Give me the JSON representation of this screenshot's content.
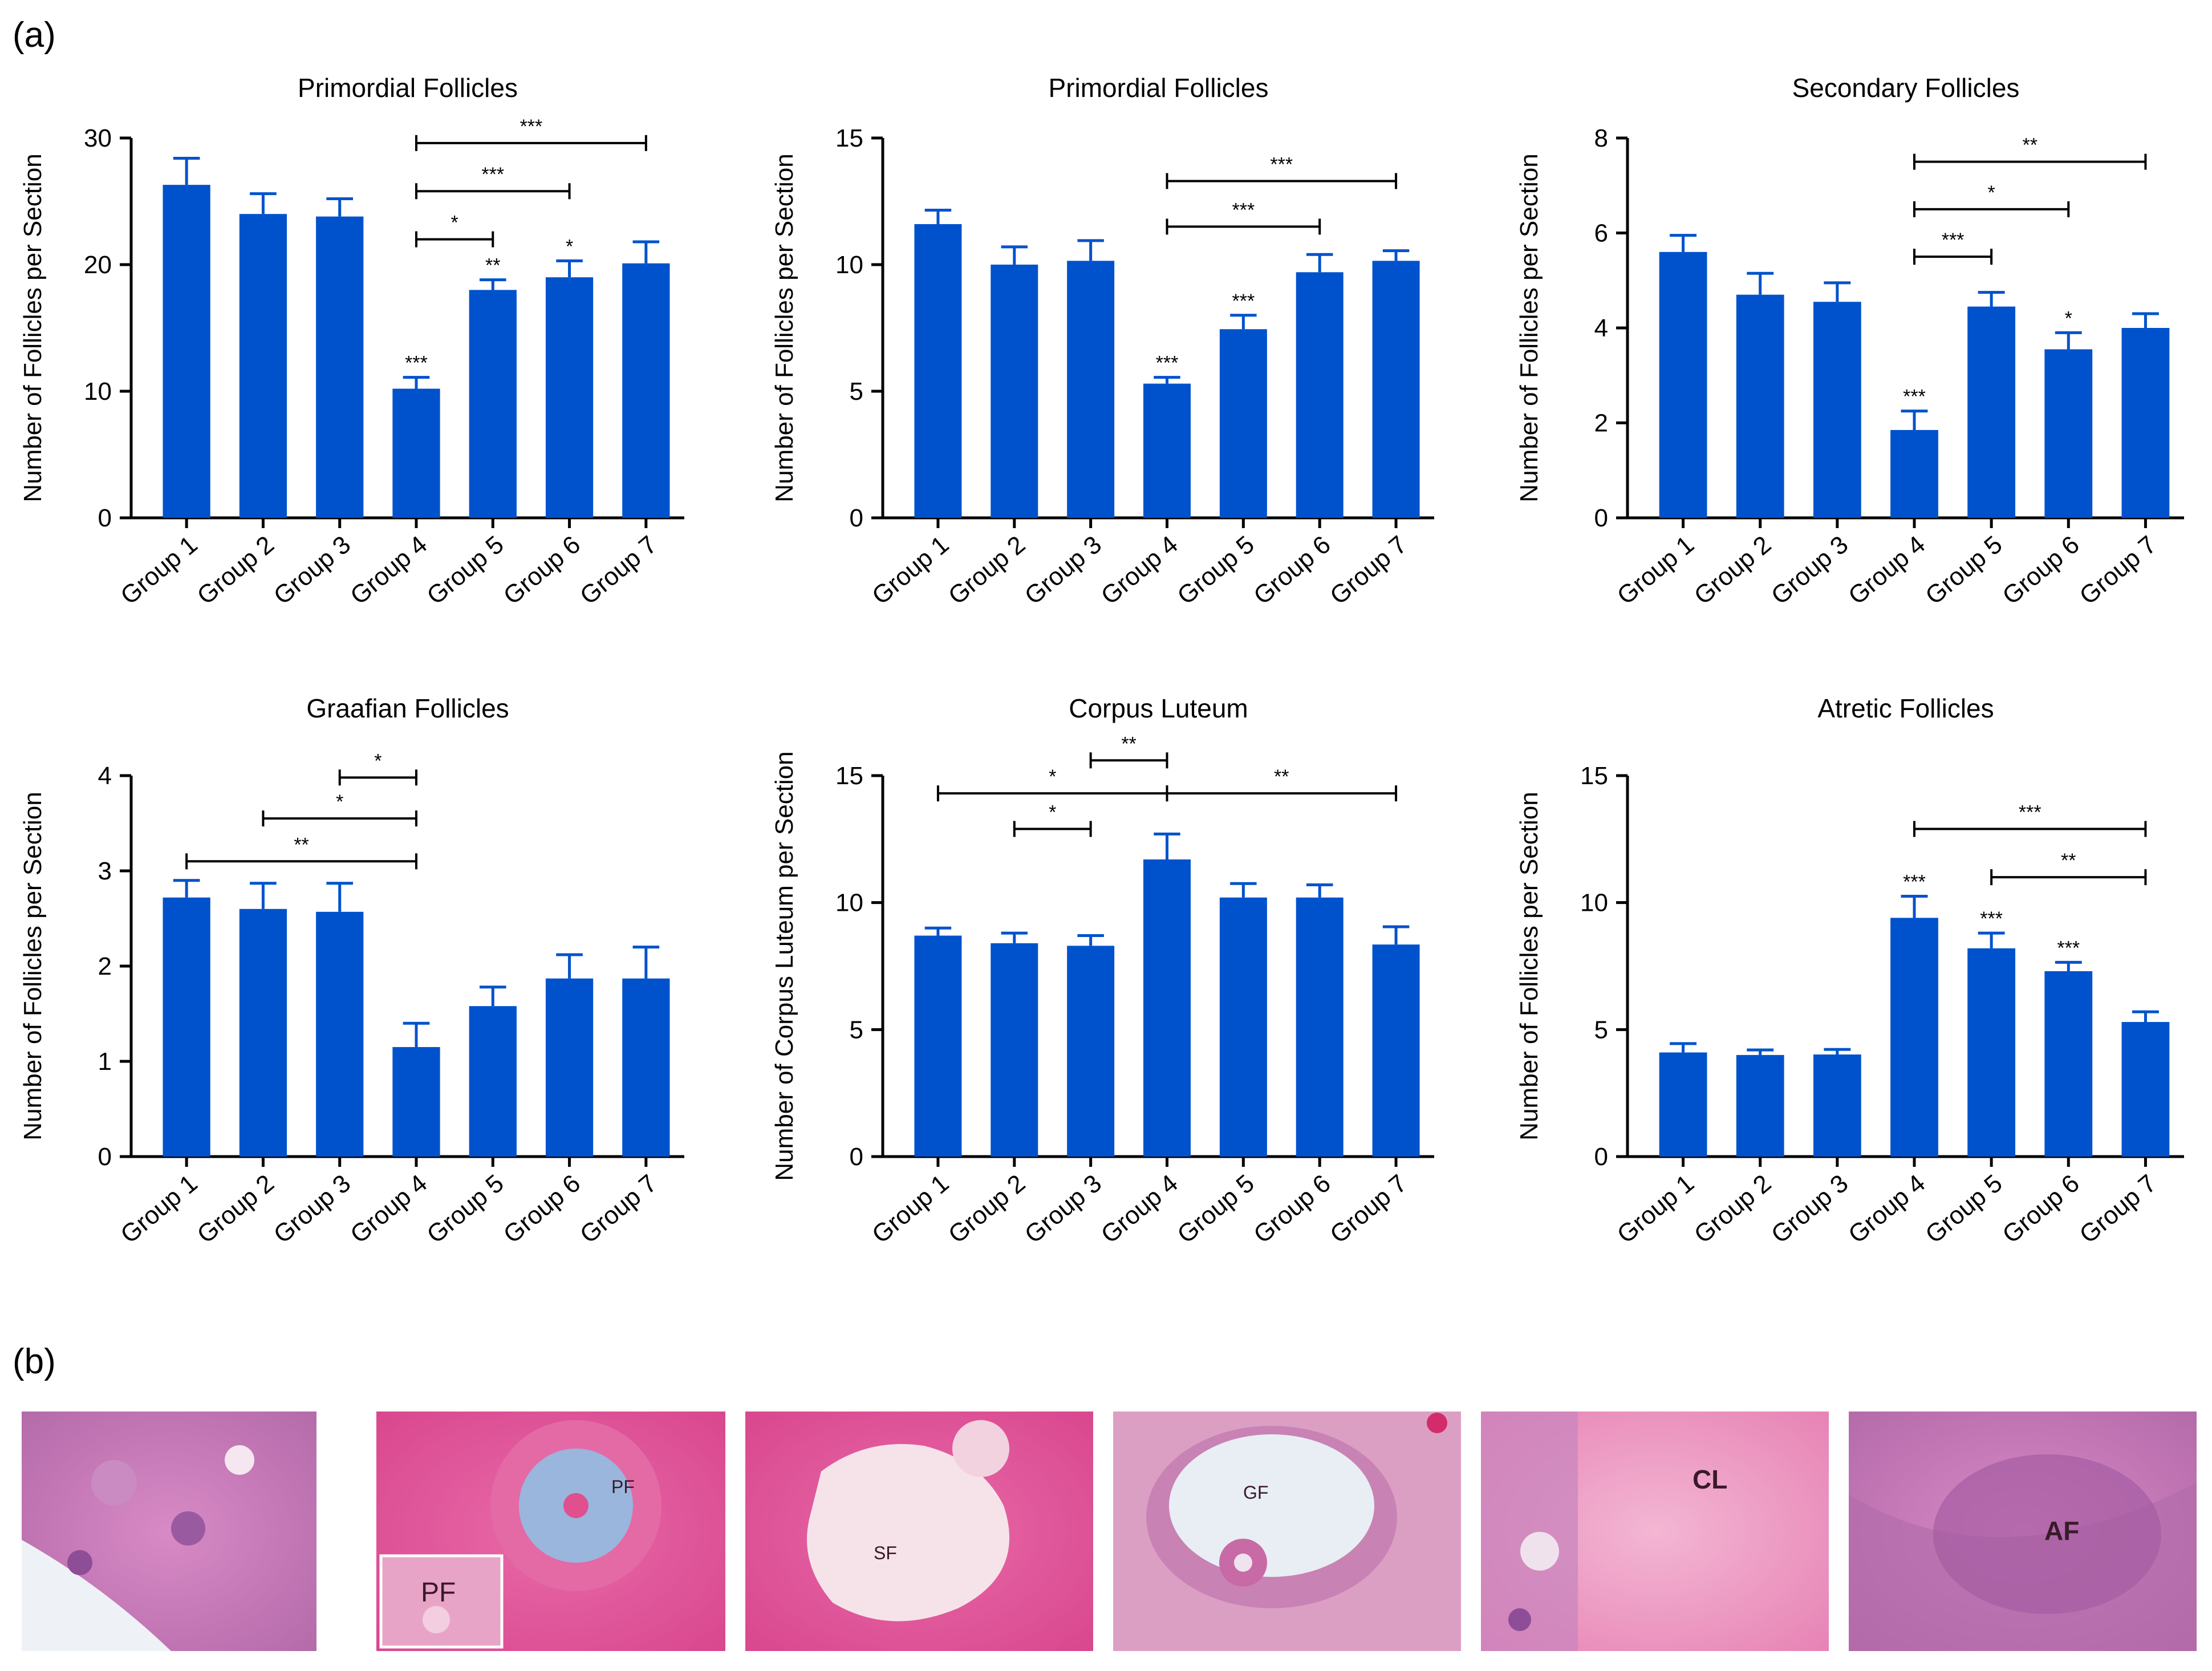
{
  "panel_a_label": "(a)",
  "panel_b_label": "(b)",
  "colors": {
    "bar": "#0052CC",
    "axis": "#000000"
  },
  "chart_data": [
    {
      "type": "bar",
      "title": "Primordial Follicles",
      "ylabel": "Number of Follicles per Section",
      "categories": [
        "Group 1",
        "Group 2",
        "Group 3",
        "Group 4",
        "Group 5",
        "Group 6",
        "Group 7"
      ],
      "values": [
        26.3,
        24.0,
        23.8,
        10.2,
        18.0,
        19.0,
        20.1
      ],
      "errors": [
        2.1,
        1.6,
        1.4,
        0.9,
        0.8,
        1.3,
        1.7
      ],
      "ylim": [
        0,
        30
      ],
      "yticks": [
        0,
        10,
        20,
        30
      ],
      "bar_marks": [
        "",
        "",
        "",
        "***",
        "**",
        "*",
        ""
      ],
      "brackets": [
        {
          "from": 3,
          "to": 4,
          "y": 22.0,
          "label": "*"
        },
        {
          "from": 3,
          "to": 5,
          "y": 25.8,
          "label": "***"
        },
        {
          "from": 3,
          "to": 6,
          "y": 29.6,
          "label": "***"
        }
      ]
    },
    {
      "type": "bar",
      "title": "Primordial Follicles",
      "ylabel": "Number of Follicles per Section",
      "categories": [
        "Group 1",
        "Group 2",
        "Group 3",
        "Group 4",
        "Group 5",
        "Group 6",
        "Group 7"
      ],
      "values": [
        11.6,
        10.0,
        10.15,
        5.3,
        7.45,
        9.7,
        10.15
      ],
      "errors": [
        0.55,
        0.7,
        0.8,
        0.25,
        0.55,
        0.7,
        0.4
      ],
      "ylim": [
        0,
        15
      ],
      "yticks": [
        0,
        5,
        10,
        15
      ],
      "bar_marks": [
        "",
        "",
        "",
        "***",
        "***",
        "",
        ""
      ],
      "brackets": [
        {
          "from": 3,
          "to": 5,
          "y": 11.5,
          "label": "***"
        },
        {
          "from": 3,
          "to": 6,
          "y": 13.3,
          "label": "***"
        }
      ]
    },
    {
      "type": "bar",
      "title": "Secondary Follicles",
      "ylabel": "Number of Follicles per Section",
      "categories": [
        "Group 1",
        "Group 2",
        "Group 3",
        "Group 4",
        "Group 5",
        "Group 6",
        "Group 7"
      ],
      "values": [
        5.6,
        4.7,
        4.55,
        1.85,
        4.45,
        3.55,
        4.0
      ],
      "errors": [
        0.35,
        0.45,
        0.4,
        0.4,
        0.3,
        0.35,
        0.3
      ],
      "ylim": [
        0,
        8
      ],
      "yticks": [
        0,
        2,
        4,
        6,
        8
      ],
      "bar_marks": [
        "",
        "",
        "",
        "***",
        "",
        "*",
        ""
      ],
      "brackets": [
        {
          "from": 3,
          "to": 4,
          "y": 5.5,
          "label": "***"
        },
        {
          "from": 3,
          "to": 5,
          "y": 6.5,
          "label": "*"
        },
        {
          "from": 3,
          "to": 6,
          "y": 7.5,
          "label": "**"
        }
      ]
    },
    {
      "type": "bar",
      "title": "Graafian Follicles",
      "ylabel": "Number of Follicles per Section",
      "categories": [
        "Group 1",
        "Group 2",
        "Group 3",
        "Group 4",
        "Group 5",
        "Group 6",
        "Group 7"
      ],
      "values": [
        2.72,
        2.6,
        2.57,
        1.15,
        1.58,
        1.87,
        1.87
      ],
      "errors": [
        0.18,
        0.27,
        0.3,
        0.25,
        0.2,
        0.25,
        0.33
      ],
      "ylim": [
        0,
        4
      ],
      "yticks": [
        0,
        1,
        2,
        3,
        4
      ],
      "bar_marks": [
        "",
        "",
        "",
        "",
        "",
        "",
        ""
      ],
      "brackets": [
        {
          "from": 0,
          "to": 3,
          "y": 3.1,
          "label": "**"
        },
        {
          "from": 1,
          "to": 3,
          "y": 3.55,
          "label": "*"
        },
        {
          "from": 2,
          "to": 3,
          "y": 3.98,
          "label": "*"
        }
      ]
    },
    {
      "type": "bar",
      "title": "Corpus Luteum",
      "ylabel": "Number of Corpus Luteum per Section",
      "categories": [
        "Group 1",
        "Group 2",
        "Group 3",
        "Group 4",
        "Group 5",
        "Group 6",
        "Group 7"
      ],
      "values": [
        8.7,
        8.4,
        8.3,
        11.7,
        10.2,
        10.2,
        8.35
      ],
      "errors": [
        0.3,
        0.4,
        0.4,
        1.0,
        0.55,
        0.5,
        0.7
      ],
      "ylim": [
        0,
        15
      ],
      "yticks": [
        0,
        5,
        10,
        15
      ],
      "bar_marks": [
        "",
        "",
        "",
        "",
        "",
        "",
        ""
      ],
      "brackets": [
        {
          "from": 1,
          "to": 2,
          "y": 12.9,
          "label": "*"
        },
        {
          "from": 0,
          "to": 3,
          "y": 14.3,
          "label": "*"
        },
        {
          "from": 2,
          "to": 3,
          "y": 15.6,
          "label": "**"
        },
        {
          "from": 3,
          "to": 6,
          "y": 14.3,
          "label": "**"
        }
      ]
    },
    {
      "type": "bar",
      "title": "Atretic Follicles",
      "ylabel": "Number of Follicles per Section",
      "categories": [
        "Group 1",
        "Group 2",
        "Group 3",
        "Group 4",
        "Group 5",
        "Group 6",
        "Group 7"
      ],
      "values": [
        4.1,
        4.0,
        4.02,
        9.4,
        8.2,
        7.3,
        5.3
      ],
      "errors": [
        0.35,
        0.2,
        0.2,
        0.85,
        0.6,
        0.35,
        0.4
      ],
      "ylim": [
        0,
        15
      ],
      "yticks": [
        0,
        5,
        10,
        15
      ],
      "bar_marks": [
        "",
        "",
        "",
        "***",
        "***",
        "***",
        ""
      ],
      "brackets": [
        {
          "from": 4,
          "to": 6,
          "y": 11.0,
          "label": "**"
        },
        {
          "from": 3,
          "to": 6,
          "y": 12.9,
          "label": "***"
        }
      ]
    }
  ],
  "micrographs": [
    {
      "name": "primordial-follicle-micrograph",
      "labels": []
    },
    {
      "name": "primary-follicle-micrograph",
      "labels": [
        "PF",
        "PF"
      ]
    },
    {
      "name": "secondary-follicle-micrograph",
      "labels": [
        "SF"
      ]
    },
    {
      "name": "graafian-follicle-micrograph",
      "labels": [
        "GF"
      ]
    },
    {
      "name": "corpus-luteum-micrograph",
      "labels": [
        "CL"
      ]
    },
    {
      "name": "atretic-follicle-micrograph",
      "labels": [
        "AF"
      ]
    }
  ]
}
